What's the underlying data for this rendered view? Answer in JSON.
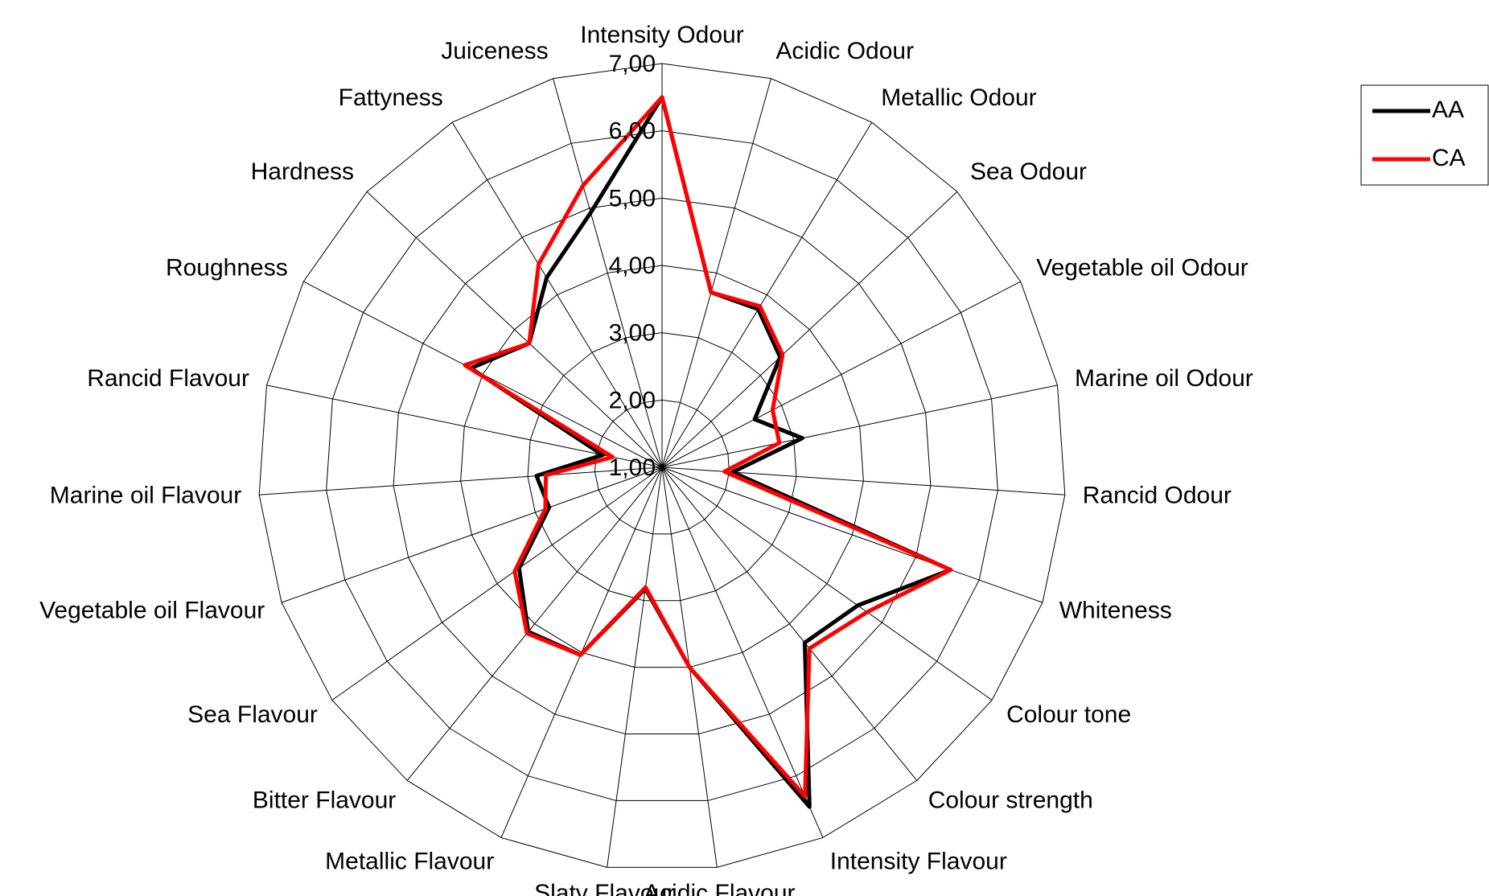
{
  "chart_data": {
    "type": "radar",
    "categories": [
      "Intensity Odour",
      "Acidic Odour",
      "Metallic Odour",
      "Sea Odour",
      "Vegetable oil Odour",
      "Marine oil Odour",
      "Rancid Odour",
      "Whiteness",
      "Colour tone",
      "Colour strength",
      "Intensity Flavour",
      "Acidic Flavour",
      "Slaty Flavour",
      "Metallic Flavour",
      "Bitter Flavour",
      "Sea Flavour",
      "Vegetable oil Flavour",
      "Marine oil Flavour",
      "Rancid Flavour",
      "Roughness",
      "Hardness",
      "Fattyness",
      "Juiceness"
    ],
    "series": [
      {
        "name": "AA",
        "color": "#000000",
        "values": [
          6.5,
          3.7,
          3.75,
          3.4,
          2.55,
          3.13,
          2.05,
          5.55,
          4.56,
          4.36,
          6.5,
          4.0,
          2.82,
          4.04,
          4.15,
          3.6,
          2.78,
          2.87,
          1.9,
          4.2,
          3.7,
          4.3,
          4.93
        ]
      },
      {
        "name": "CA",
        "color": "#ff0000",
        "values": [
          6.5,
          3.7,
          3.8,
          3.45,
          2.85,
          2.78,
          1.93,
          5.55,
          4.73,
          4.47,
          6.33,
          4.0,
          2.8,
          4.04,
          4.18,
          3.68,
          2.84,
          2.73,
          1.75,
          4.3,
          3.7,
          4.53,
          5.35
        ]
      }
    ],
    "ylim": [
      1,
      7
    ],
    "yticks": [
      {
        "value": 1,
        "label": "1,00"
      },
      {
        "value": 2,
        "label": "2,00"
      },
      {
        "value": 3,
        "label": "3,00"
      },
      {
        "value": 4,
        "label": "4,00"
      },
      {
        "value": 5,
        "label": "5,00"
      },
      {
        "value": 6,
        "label": "6,00"
      },
      {
        "value": 7,
        "label": "7,00"
      }
    ],
    "legend": "top-right"
  }
}
